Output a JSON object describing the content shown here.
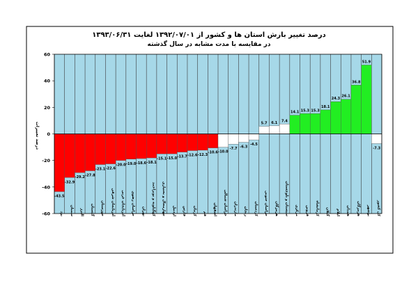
{
  "chart_data": {
    "type": "bar",
    "title": "درصد تغییر بارش استان ها و کشور از ۱۳۹۲/۰۷/۰۱ لغایت ۱۳۹۳/۰۶/۳۱",
    "subtitle": "در مقایسه با مدت مشابه در سال گذشته",
    "xlabel": "",
    "ylabel": "درصد تغییرات",
    "ylim": [
      -60,
      60
    ],
    "yticks": [
      -60,
      -40,
      -20,
      0,
      20,
      40,
      60
    ],
    "grid": "vertical",
    "legend": "none",
    "categories": [
      "یزد",
      "سمنان",
      "البرز",
      "گلستان",
      "خوزستان",
      "آذربایجان شرقی",
      "آذربایجان غربی",
      "خراسان رضوی",
      "تهران",
      "کهگیلویه و بویراحمد",
      "چهارمحال و بختیاری",
      "اردبیل",
      "فارس",
      "کرمان",
      "قم",
      "اصفهان",
      "خراسان شمالی",
      "مازندران",
      "زنجان",
      "کردستان",
      "خراسان جنوبی",
      "هرمزگان",
      "سیستان و بلوچستان",
      "مرکزی",
      "قزوین",
      "کرمانشاه",
      "گیلان",
      "ایلام",
      "همدان",
      "هرمزگان",
      "بوشهر",
      "کل کشور"
    ],
    "values": [
      -43.5,
      -32.9,
      -29.2,
      -27.8,
      -23.1,
      -22.6,
      -20.0,
      -19.0,
      -18.6,
      -18.1,
      -15.1,
      -15.0,
      -13.7,
      -12.6,
      -12.3,
      -10.6,
      -10.0,
      -7.7,
      -6.3,
      -4.5,
      5.7,
      6.1,
      7.4,
      14.1,
      15.3,
      15.3,
      18.1,
      24.3,
      26.1,
      36.8,
      51.9,
      -7.3
    ],
    "value_labels": [
      "-43.5",
      "-32.9",
      "-29.2",
      "-27.8",
      "-23.1",
      "-22.6",
      "-20.0",
      "-19.0",
      "-18.6",
      "-18.1",
      "-15.1",
      "-15.0",
      "-13.7",
      "-12.6",
      "-12.3",
      "-10.6",
      "-10.0",
      "-7.7",
      "-6.3",
      "-4.5",
      "5.7",
      "6.1",
      "7.4",
      "14.1",
      "15.3",
      "15.3",
      "18.1",
      "24.3",
      "26.1",
      "36.8",
      "51.9",
      "-7.3"
    ],
    "colors": {
      "plot_background": "#a6d8e8",
      "negative_bar": "#ff0000",
      "positive_bar": "#22ee22",
      "neutral_bar": "#ffffff",
      "frame": "#000000"
    },
    "bar_colors": [
      "red",
      "red",
      "red",
      "red",
      "red",
      "red",
      "red",
      "red",
      "red",
      "red",
      "red",
      "red",
      "red",
      "red",
      "red",
      "red",
      "white",
      "white",
      "white",
      "white",
      "white",
      "white",
      "white",
      "green",
      "green",
      "green",
      "green",
      "green",
      "green",
      "green",
      "green",
      "white"
    ]
  }
}
